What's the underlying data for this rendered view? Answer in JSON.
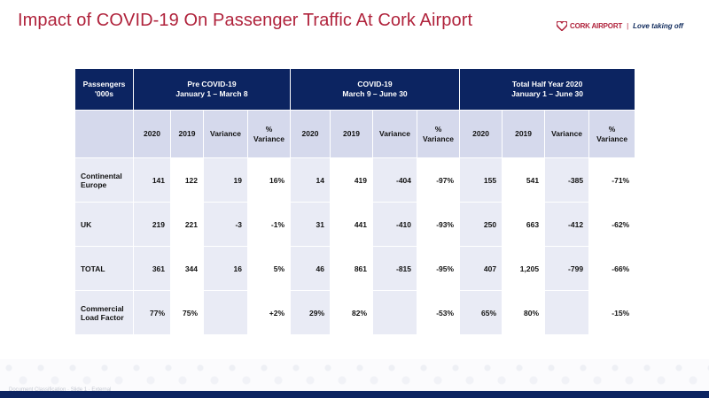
{
  "title": "Impact of COVID-19 On Passenger Traffic At Cork Airport",
  "logo": {
    "brand": "CORK AIRPORT",
    "separator": "|",
    "tagline": "Love taking off",
    "icon": "heart-icon",
    "accent_color": "#b0233c"
  },
  "table": {
    "corner_header": [
      "Passengers",
      "'000s"
    ],
    "periods": [
      {
        "name": "Pre COVID-19",
        "dates": "January 1 – March 8"
      },
      {
        "name": "COVID-19",
        "dates": "March 9 – June 30"
      },
      {
        "name": "Total Half Year 2020",
        "dates": "January 1 – June 30"
      }
    ],
    "sub_headers": [
      {
        "line1": "2020",
        "line2": ""
      },
      {
        "line1": "2019",
        "line2": ""
      },
      {
        "line1": "Variance",
        "line2": ""
      },
      {
        "line1": "%",
        "line2": "Variance"
      }
    ],
    "rows": [
      {
        "label": [
          "Continental",
          "Europe"
        ],
        "cells": [
          "141",
          "122",
          "19",
          "16%",
          "14",
          "419",
          "-404",
          "-97%",
          "155",
          "541",
          "-385",
          "-71%"
        ]
      },
      {
        "label": [
          "UK",
          ""
        ],
        "cells": [
          "219",
          "221",
          "-3",
          "-1%",
          "31",
          "441",
          "-410",
          "-93%",
          "250",
          "663",
          "-412",
          "-62%"
        ]
      },
      {
        "label": [
          "TOTAL",
          ""
        ],
        "cells": [
          "361",
          "344",
          "16",
          "5%",
          "46",
          "861",
          "-815",
          "-95%",
          "407",
          "1,205",
          "-799",
          "-66%"
        ]
      },
      {
        "label": [
          "Commercial",
          "Load Factor"
        ],
        "cells": [
          "77%",
          "75%",
          "",
          "+2%",
          "29%",
          "82%",
          "",
          "-53%",
          "65%",
          "80%",
          "",
          "-15%"
        ]
      }
    ]
  },
  "footer": {
    "note": "Document Classification · Slide 1 · External"
  },
  "colors": {
    "title": "#b0233c",
    "header_bg": "#0c2461",
    "subheader_bg": "#d5d9ec",
    "shaded_cell": "#e9ebf5"
  }
}
